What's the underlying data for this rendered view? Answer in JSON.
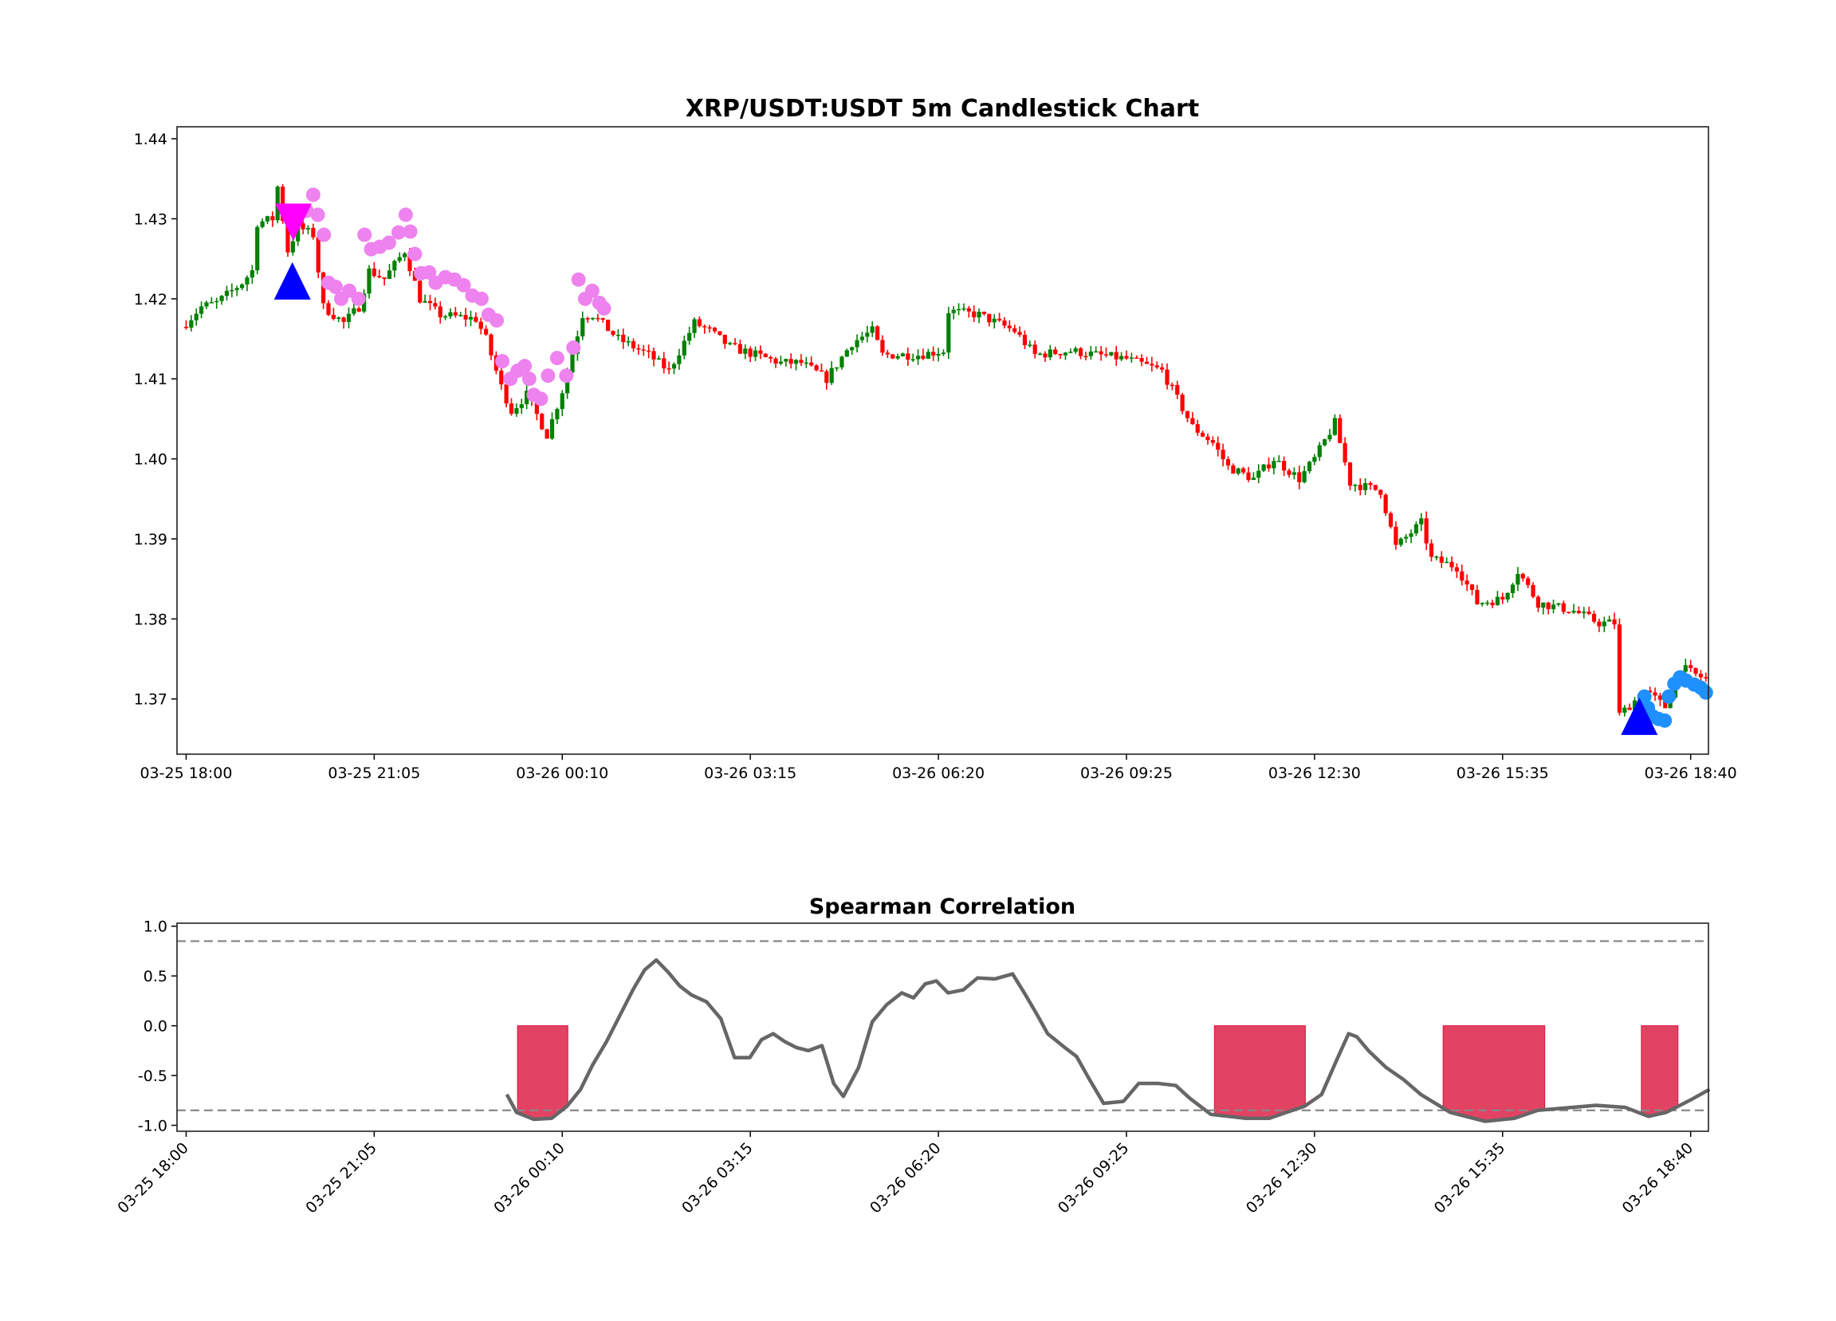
{
  "chart_data": [
    {
      "type": "candlestick",
      "title": "XRP/USDT:USDT 5m Candlestick Chart",
      "interval_minutes": 5,
      "x_start": "03-25 18:00",
      "xlim": [
        -1.8,
        299.5
      ],
      "ylim": [
        1.3631,
        1.4415
      ],
      "yticks": [
        1.37,
        1.38,
        1.39,
        1.4,
        1.41,
        1.42,
        1.43,
        1.44
      ],
      "ytick_labels": [
        "1.37",
        "1.38",
        "1.39",
        "1.40",
        "1.41",
        "1.42",
        "1.43",
        "1.44"
      ],
      "xticks": [
        0,
        37,
        74,
        111,
        148,
        185,
        222,
        259,
        296
      ],
      "xtick_labels": [
        "03-25 18:00",
        "03-25 21:05",
        "03-26 00:10",
        "03-26 03:15",
        "03-26 06:20",
        "03-26 09:25",
        "03-26 12:30",
        "03-26 15:35",
        "03-26 18:40"
      ],
      "colors": {
        "up": "#008000",
        "down": "#ff0000"
      },
      "close_path": [
        [
          0,
          1.417
        ],
        [
          3,
          1.419
        ],
        [
          6,
          1.4195
        ],
        [
          11,
          1.422
        ],
        [
          13,
          1.4235
        ],
        [
          14,
          1.4295
        ],
        [
          17,
          1.43
        ],
        [
          18,
          1.434
        ],
        [
          20,
          1.426
        ],
        [
          22,
          1.429
        ],
        [
          25,
          1.428
        ],
        [
          27,
          1.419
        ],
        [
          31,
          1.417
        ],
        [
          34,
          1.419
        ],
        [
          36,
          1.4235
        ],
        [
          39,
          1.4225
        ],
        [
          43,
          1.426
        ],
        [
          46,
          1.42
        ],
        [
          50,
          1.418
        ],
        [
          57,
          1.4175
        ],
        [
          59,
          1.415
        ],
        [
          62,
          1.409
        ],
        [
          64,
          1.406
        ],
        [
          67,
          1.408
        ],
        [
          71,
          1.403
        ],
        [
          74,
          1.4085
        ],
        [
          78,
          1.418
        ],
        [
          80,
          1.418
        ],
        [
          85,
          1.415
        ],
        [
          91,
          1.413
        ],
        [
          95,
          1.411
        ],
        [
          100,
          1.417
        ],
        [
          103,
          1.416
        ],
        [
          107,
          1.414
        ],
        [
          112,
          1.413
        ],
        [
          117,
          1.412
        ],
        [
          121,
          1.412
        ],
        [
          126,
          1.41
        ],
        [
          131,
          1.4145
        ],
        [
          135,
          1.416
        ],
        [
          137,
          1.413
        ],
        [
          144,
          1.413
        ],
        [
          149,
          1.4135
        ],
        [
          150,
          1.4185
        ],
        [
          156,
          1.418
        ],
        [
          163,
          1.416
        ],
        [
          167,
          1.413
        ],
        [
          174,
          1.4135
        ],
        [
          179,
          1.413
        ],
        [
          185,
          1.4125
        ],
        [
          192,
          1.411
        ],
        [
          195,
          1.4075
        ],
        [
          198,
          1.404
        ],
        [
          202,
          1.402
        ],
        [
          205,
          1.399
        ],
        [
          210,
          1.3975
        ],
        [
          214,
          1.4
        ],
        [
          219,
          1.3975
        ],
        [
          222,
          1.4
        ],
        [
          226,
          1.4045
        ],
        [
          229,
          1.397
        ],
        [
          235,
          1.396
        ],
        [
          238,
          1.389
        ],
        [
          243,
          1.392
        ],
        [
          245,
          1.3875
        ],
        [
          250,
          1.3865
        ],
        [
          254,
          1.382
        ],
        [
          259,
          1.3825
        ],
        [
          262,
          1.386
        ],
        [
          266,
          1.382
        ],
        [
          273,
          1.381
        ],
        [
          278,
          1.3795
        ],
        [
          281,
          1.3795
        ],
        [
          282,
          1.368
        ],
        [
          287,
          1.371
        ],
        [
          291,
          1.369
        ],
        [
          294,
          1.374
        ],
        [
          297,
          1.373
        ],
        [
          299,
          1.3725
        ]
      ],
      "markers": {
        "buy_triangles": {
          "color": "#0000ff",
          "points": [
            [
              20.9,
              1.4215
            ],
            [
              285.9,
              1.3671
            ]
          ]
        },
        "sell_triangles": {
          "color": "#ff00ff",
          "points": [
            [
              21.1,
              1.4303
            ]
          ]
        },
        "violet_dots": {
          "color": "#ee82ee",
          "points": [
            [
              23.7,
              1.431
            ],
            [
              25.0,
              1.433
            ],
            [
              25.9,
              1.4305
            ],
            [
              27.1,
              1.428
            ],
            [
              28.0,
              1.422
            ],
            [
              29.4,
              1.4215
            ],
            [
              30.5,
              1.42
            ],
            [
              32.1,
              1.421
            ],
            [
              33.9,
              1.42
            ],
            [
              35.1,
              1.428
            ],
            [
              36.4,
              1.4262
            ],
            [
              38.1,
              1.4265
            ],
            [
              39.9,
              1.427
            ],
            [
              41.8,
              1.4283
            ],
            [
              43.2,
              1.4305
            ],
            [
              44.1,
              1.4284
            ],
            [
              45.0,
              1.4256
            ],
            [
              46.2,
              1.4232
            ],
            [
              47.8,
              1.4233
            ],
            [
              49.1,
              1.422
            ],
            [
              51.0,
              1.4227
            ],
            [
              52.8,
              1.4224
            ],
            [
              54.6,
              1.4217
            ],
            [
              56.3,
              1.4204
            ],
            [
              58.1,
              1.42
            ],
            [
              59.5,
              1.418
            ],
            [
              61.1,
              1.4173
            ],
            [
              62.2,
              1.4122
            ],
            [
              63.8,
              1.41
            ],
            [
              65.2,
              1.411
            ],
            [
              66.6,
              1.4116
            ],
            [
              67.5,
              1.41
            ],
            [
              68.4,
              1.408
            ],
            [
              69.8,
              1.4075
            ],
            [
              71.2,
              1.4104
            ],
            [
              73.0,
              1.4126
            ],
            [
              74.8,
              1.4104
            ],
            [
              76.2,
              1.4139
            ],
            [
              77.2,
              1.4224
            ],
            [
              78.5,
              1.42
            ],
            [
              79.9,
              1.421
            ],
            [
              81.3,
              1.4195
            ],
            [
              82.2,
              1.4188
            ]
          ]
        },
        "blue_dots": {
          "color": "#1e90ff",
          "points": [
            [
              286.9,
              1.3703
            ],
            [
              287.6,
              1.3689
            ],
            [
              288.6,
              1.3678
            ],
            [
              289.7,
              1.3675
            ],
            [
              290.9,
              1.3673
            ],
            [
              291.7,
              1.3703
            ],
            [
              292.8,
              1.3719
            ],
            [
              293.9,
              1.3727
            ],
            [
              295.1,
              1.3723
            ],
            [
              296.7,
              1.3718
            ],
            [
              298.0,
              1.3714
            ],
            [
              299.0,
              1.3708
            ]
          ]
        }
      }
    },
    {
      "type": "line",
      "title": "Spearman Correlation",
      "xlim": [
        -1.8,
        299.5
      ],
      "ylim": [
        -1.06,
        1.03
      ],
      "yticks": [
        -1.0,
        -0.5,
        0.0,
        0.5,
        1.0
      ],
      "ytick_labels": [
        "-1.0",
        "-0.5",
        "0.0",
        "0.5",
        "1.0"
      ],
      "xticks": [
        0,
        37,
        74,
        111,
        148,
        185,
        222,
        259,
        296
      ],
      "xtick_labels": [
        "03-25 18:00",
        "03-25 21:05",
        "03-26 00:10",
        "03-26 03:15",
        "03-26 06:20",
        "03-26 09:25",
        "03-26 12:30",
        "03-26 15:35",
        "03-26 18:40"
      ],
      "thresholds": [
        0.85,
        -0.85
      ],
      "line_color": "#666666",
      "fill_color": "#dc143c",
      "series": [
        [
          63.1,
          -0.69
        ],
        [
          65.0,
          -0.87
        ],
        [
          68.4,
          -0.94
        ],
        [
          71.9,
          -0.93
        ],
        [
          74.9,
          -0.81
        ],
        [
          77.6,
          -0.64
        ],
        [
          79.9,
          -0.4
        ],
        [
          82.7,
          -0.16
        ],
        [
          85.6,
          0.13
        ],
        [
          87.9,
          0.36
        ],
        [
          90.2,
          0.56
        ],
        [
          92.5,
          0.66
        ],
        [
          94.8,
          0.54
        ],
        [
          97.1,
          0.4
        ],
        [
          99.4,
          0.31
        ],
        [
          102.4,
          0.24
        ],
        [
          105.2,
          0.07
        ],
        [
          107.9,
          -0.32
        ],
        [
          110.9,
          -0.32
        ],
        [
          113.2,
          -0.14
        ],
        [
          115.5,
          -0.08
        ],
        [
          117.8,
          -0.16
        ],
        [
          120.1,
          -0.22
        ],
        [
          122.4,
          -0.25
        ],
        [
          125.1,
          -0.2
        ],
        [
          127.4,
          -0.58
        ],
        [
          129.3,
          -0.71
        ],
        [
          132.3,
          -0.42
        ],
        [
          135.0,
          0.04
        ],
        [
          137.8,
          0.21
        ],
        [
          140.8,
          0.33
        ],
        [
          143.1,
          0.28
        ],
        [
          145.4,
          0.42
        ],
        [
          147.6,
          0.45
        ],
        [
          149.9,
          0.33
        ],
        [
          152.9,
          0.36
        ],
        [
          155.7,
          0.48
        ],
        [
          159.1,
          0.47
        ],
        [
          162.6,
          0.52
        ],
        [
          164.9,
          0.33
        ],
        [
          167.2,
          0.13
        ],
        [
          169.5,
          -0.08
        ],
        [
          172.9,
          -0.22
        ],
        [
          175.2,
          -0.31
        ],
        [
          177.5,
          -0.52
        ],
        [
          180.5,
          -0.78
        ],
        [
          184.4,
          -0.76
        ],
        [
          187.4,
          -0.58
        ],
        [
          191.3,
          -0.58
        ],
        [
          194.7,
          -0.6
        ],
        [
          197.5,
          -0.73
        ],
        [
          201.6,
          -0.89
        ],
        [
          208.5,
          -0.93
        ],
        [
          213.1,
          -0.93
        ],
        [
          216.5,
          -0.87
        ],
        [
          220.0,
          -0.81
        ],
        [
          223.4,
          -0.69
        ],
        [
          226.4,
          -0.34
        ],
        [
          228.7,
          -0.08
        ],
        [
          230.3,
          -0.11
        ],
        [
          232.6,
          -0.25
        ],
        [
          236.1,
          -0.42
        ],
        [
          239.5,
          -0.54
        ],
        [
          242.9,
          -0.69
        ],
        [
          248.7,
          -0.87
        ],
        [
          255.6,
          -0.96
        ],
        [
          261.3,
          -0.93
        ],
        [
          265.9,
          -0.85
        ],
        [
          272.8,
          -0.82
        ],
        [
          277.4,
          -0.8
        ],
        [
          283.1,
          -0.82
        ],
        [
          287.7,
          -0.91
        ],
        [
          291.2,
          -0.87
        ],
        [
          295.8,
          -0.75
        ],
        [
          299.7,
          -0.64
        ]
      ],
      "signal_regions": [
        [
          65.2,
          75.1
        ],
        [
          202.3,
          220.2
        ],
        [
          247.3,
          267.3
        ],
        [
          286.3,
          293.5
        ]
      ]
    }
  ]
}
